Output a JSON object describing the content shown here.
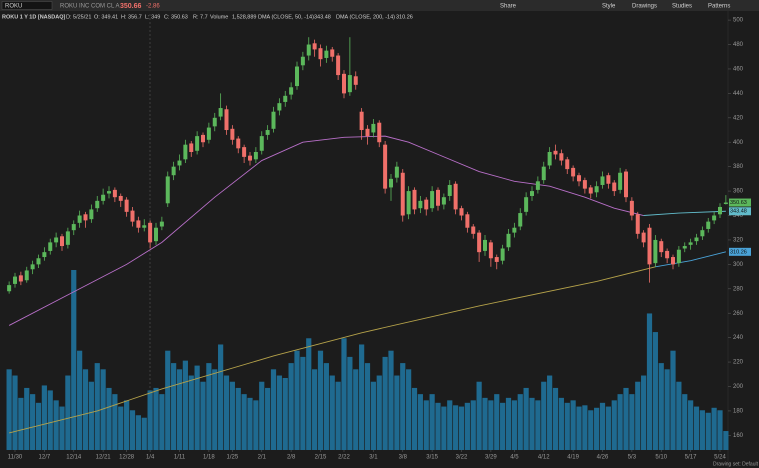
{
  "header": {
    "symbol": "ROKU",
    "company": "ROKU INC COM CL A",
    "last": "350.66",
    "change": "-2.86",
    "buttons": [
      "Share",
      "Style",
      "Drawings",
      "Studies",
      "Patterns"
    ],
    "study_line": [
      "ROKU 1 Y 1D [NASDAQ]",
      "D: 5/25/21",
      "O: 349.41",
      "H: 356.7",
      "L: 349",
      "C: 350.63",
      "R: 7.7",
      "Volume",
      "1,528,889",
      "DMA (CLOSE, 50, -14)",
      "343.48",
      "DMA (CLOSE, 200, -14)",
      "310.26"
    ],
    "footer": "Drawing set: Default"
  },
  "chart_data": {
    "type": "candlestick",
    "up_color": "#5cb85c",
    "down_color": "#f0706a",
    "volume_color": "#1f6a90",
    "xlim": [
      -1,
      124
    ],
    "ylim": [
      148,
      505
    ],
    "yticks": [
      160,
      180,
      200,
      220,
      240,
      260,
      280,
      300,
      320,
      340,
      360,
      380,
      400,
      420,
      440,
      460,
      480,
      500
    ],
    "xticks": [
      {
        "value": 1,
        "label": "11/30"
      },
      {
        "value": 6,
        "label": "12/7"
      },
      {
        "value": 11,
        "label": "12/14"
      },
      {
        "value": 16,
        "label": "12/21"
      },
      {
        "value": 20,
        "label": "12/28"
      },
      {
        "value": 24,
        "label": "1/4"
      },
      {
        "value": 29,
        "label": "1/11"
      },
      {
        "value": 34,
        "label": "1/18"
      },
      {
        "value": 38,
        "label": "1/25"
      },
      {
        "value": 43,
        "label": "2/1"
      },
      {
        "value": 48,
        "label": "2/8"
      },
      {
        "value": 53,
        "label": "2/15"
      },
      {
        "value": 57,
        "label": "2/22"
      },
      {
        "value": 62,
        "label": "3/1"
      },
      {
        "value": 67,
        "label": "3/8"
      },
      {
        "value": 72,
        "label": "3/15"
      },
      {
        "value": 77,
        "label": "3/22"
      },
      {
        "value": 82,
        "label": "3/29"
      },
      {
        "value": 86,
        "label": "4/5"
      },
      {
        "value": 91,
        "label": "4/12"
      },
      {
        "value": 96,
        "label": "4/19"
      },
      {
        "value": 101,
        "label": "4/26"
      },
      {
        "value": 106,
        "label": "5/3"
      },
      {
        "value": 111,
        "label": "5/10"
      },
      {
        "value": 116,
        "label": "5/17"
      },
      {
        "value": 121,
        "label": "5/24"
      }
    ],
    "ohlc": [
      [
        278,
        286,
        276,
        283
      ],
      [
        284,
        293,
        281,
        290
      ],
      [
        291,
        294,
        283,
        286
      ],
      [
        287,
        298,
        285,
        295
      ],
      [
        296,
        303,
        292,
        300
      ],
      [
        300,
        308,
        297,
        305
      ],
      [
        306,
        314,
        303,
        310
      ],
      [
        311,
        321,
        308,
        318
      ],
      [
        318,
        326,
        314,
        322
      ],
      [
        323,
        325,
        311,
        315
      ],
      [
        316,
        330,
        313,
        327
      ],
      [
        328,
        336,
        324,
        333
      ],
      [
        334,
        344,
        330,
        340
      ],
      [
        341,
        343,
        330,
        336
      ],
      [
        337,
        349,
        334,
        345
      ],
      [
        346,
        356,
        343,
        352
      ],
      [
        352,
        362,
        349,
        357
      ],
      [
        358,
        364,
        354,
        360
      ],
      [
        361,
        363,
        351,
        355
      ],
      [
        356,
        358,
        347,
        352
      ],
      [
        353,
        355,
        339,
        343
      ],
      [
        344,
        347,
        331,
        335
      ],
      [
        336,
        339,
        326,
        330
      ],
      [
        330,
        337,
        327,
        332
      ],
      [
        334,
        336,
        313,
        318
      ],
      [
        319,
        334,
        316,
        330
      ],
      [
        331,
        339,
        328,
        335
      ],
      [
        350,
        376,
        347,
        372
      ],
      [
        373,
        384,
        369,
        380
      ],
      [
        381,
        390,
        377,
        385
      ],
      [
        386,
        402,
        383,
        398
      ],
      [
        399,
        401,
        388,
        392
      ],
      [
        393,
        409,
        390,
        405
      ],
      [
        406,
        408,
        396,
        400
      ],
      [
        402,
        416,
        399,
        412
      ],
      [
        413,
        424,
        409,
        420
      ],
      [
        421,
        440,
        418,
        428
      ],
      [
        427,
        430,
        406,
        410
      ],
      [
        411,
        414,
        398,
        402
      ],
      [
        403,
        405,
        391,
        395
      ],
      [
        396,
        398,
        383,
        388
      ],
      [
        389,
        392,
        381,
        385
      ],
      [
        386,
        396,
        383,
        392
      ],
      [
        393,
        409,
        390,
        405
      ],
      [
        406,
        414,
        402,
        410
      ],
      [
        411,
        429,
        408,
        425
      ],
      [
        426,
        436,
        422,
        432
      ],
      [
        433,
        442,
        429,
        438
      ],
      [
        439,
        449,
        435,
        445
      ],
      [
        446,
        466,
        443,
        462
      ],
      [
        463,
        474,
        459,
        470
      ],
      [
        471,
        486,
        467,
        480
      ],
      [
        481,
        484,
        470,
        476
      ],
      [
        477,
        480,
        462,
        468
      ],
      [
        469,
        479,
        465,
        475
      ],
      [
        476,
        478,
        466,
        470
      ],
      [
        471,
        473,
        451,
        455
      ],
      [
        456,
        459,
        436,
        440
      ],
      [
        441,
        486,
        438,
        455
      ],
      [
        454,
        458,
        443,
        447
      ],
      [
        425,
        428,
        402,
        410
      ],
      [
        411,
        414,
        398,
        405
      ],
      [
        408,
        419,
        404,
        415
      ],
      [
        416,
        418,
        396,
        400
      ],
      [
        398,
        401,
        358,
        362
      ],
      [
        363,
        374,
        352,
        370
      ],
      [
        371,
        384,
        367,
        380
      ],
      [
        375,
        378,
        335,
        340
      ],
      [
        341,
        364,
        337,
        360
      ],
      [
        361,
        363,
        341,
        345
      ],
      [
        346,
        356,
        342,
        352
      ],
      [
        353,
        355,
        340,
        345
      ],
      [
        346,
        364,
        343,
        360
      ],
      [
        361,
        363,
        344,
        348
      ],
      [
        349,
        358,
        345,
        355
      ],
      [
        356,
        369,
        352,
        365
      ],
      [
        366,
        368,
        341,
        345
      ],
      [
        346,
        348,
        336,
        340
      ],
      [
        341,
        343,
        326,
        330
      ],
      [
        331,
        333,
        321,
        325
      ],
      [
        326,
        328,
        302,
        310
      ],
      [
        311,
        324,
        307,
        320
      ],
      [
        318,
        320,
        298,
        305
      ],
      [
        306,
        308,
        296,
        302
      ],
      [
        303,
        316,
        300,
        313
      ],
      [
        314,
        329,
        311,
        325
      ],
      [
        326,
        334,
        322,
        330
      ],
      [
        331,
        346,
        328,
        342
      ],
      [
        343,
        359,
        340,
        355
      ],
      [
        356,
        364,
        352,
        360
      ],
      [
        361,
        372,
        358,
        368
      ],
      [
        369,
        384,
        366,
        380
      ],
      [
        381,
        396,
        378,
        392
      ],
      [
        393,
        398,
        386,
        390
      ],
      [
        391,
        394,
        381,
        385
      ],
      [
        386,
        388,
        374,
        378
      ],
      [
        379,
        381,
        368,
        372
      ],
      [
        373,
        375,
        364,
        368
      ],
      [
        369,
        371,
        358,
        362
      ],
      [
        363,
        365,
        354,
        358
      ],
      [
        359,
        368,
        355,
        364
      ],
      [
        365,
        376,
        362,
        372
      ],
      [
        373,
        375,
        362,
        366
      ],
      [
        367,
        369,
        356,
        360
      ],
      [
        361,
        379,
        358,
        375
      ],
      [
        376,
        378,
        351,
        355
      ],
      [
        352,
        355,
        336,
        340
      ],
      [
        341,
        343,
        321,
        325
      ],
      [
        326,
        328,
        314,
        318
      ],
      [
        330,
        333,
        285,
        300
      ],
      [
        301,
        324,
        298,
        320
      ],
      [
        319,
        321,
        306,
        310
      ],
      [
        311,
        313,
        301,
        305
      ],
      [
        306,
        308,
        296,
        300
      ],
      [
        301,
        315,
        298,
        312
      ],
      [
        313,
        318,
        310,
        315
      ],
      [
        316,
        321,
        312,
        318
      ],
      [
        319,
        325,
        316,
        322
      ],
      [
        323,
        331,
        320,
        328
      ],
      [
        329,
        338,
        326,
        335
      ],
      [
        336,
        343,
        333,
        340
      ],
      [
        341,
        350,
        338,
        347
      ],
      [
        349.41,
        356.7,
        349,
        350.63
      ]
    ],
    "volume": [
      6500000,
      6000000,
      4200000,
      5000000,
      4500000,
      3800000,
      5200000,
      4800000,
      4000000,
      3500000,
      6000000,
      14500000,
      8000000,
      6500000,
      5500000,
      7000000,
      6500000,
      5000000,
      4500000,
      3500000,
      4000000,
      3200000,
      2800000,
      2600000,
      4800000,
      5000000,
      4500000,
      8000000,
      7000000,
      6500000,
      7200000,
      6000000,
      6800000,
      5500000,
      7000000,
      6500000,
      8500000,
      6000000,
      5500000,
      5000000,
      4500000,
      4200000,
      4000000,
      5500000,
      5000000,
      6500000,
      6000000,
      5800000,
      7000000,
      8000000,
      7500000,
      9000000,
      6500000,
      8000000,
      7000000,
      6000000,
      5500000,
      9000000,
      7500000,
      6500000,
      8500000,
      7000000,
      5500000,
      6000000,
      7500000,
      8000000,
      6000000,
      7000000,
      6500000,
      5000000,
      4500000,
      4000000,
      4500000,
      3800000,
      3500000,
      4000000,
      3600000,
      3500000,
      3800000,
      4000000,
      5500000,
      4200000,
      4000000,
      4500000,
      3800000,
      4200000,
      4000000,
      4500000,
      5000000,
      4200000,
      4000000,
      5500000,
      6000000,
      5000000,
      4200000,
      3800000,
      4000000,
      3500000,
      3600000,
      3200000,
      3400000,
      3800000,
      3500000,
      4000000,
      4500000,
      5000000,
      4500000,
      5500000,
      6000000,
      11000000,
      9500000,
      7000000,
      6500000,
      8000000,
      5500000,
      4500000,
      4000000,
      3500000,
      3200000,
      3000000,
      3400000,
      3200000,
      1528889
    ],
    "series": [
      {
        "name": "DMA (CLOSE, 50, -14)",
        "color": "#b86fc8",
        "x": [
          0,
          10,
          20,
          26,
          35,
          43,
          50,
          57,
          64,
          68,
          74,
          80,
          86,
          92,
          98,
          103,
          108
        ],
        "values": [
          250,
          275,
          300,
          318,
          355,
          385,
          400,
          404,
          405,
          400,
          388,
          376,
          368,
          364,
          355,
          346,
          340
        ]
      },
      {
        "color": "#62bccb",
        "x": [
          108,
          114,
          122
        ],
        "values": [
          340,
          342,
          343.48
        ]
      },
      {
        "name": "DMA (CLOSE, 200, -14)",
        "color": "#b5a24a",
        "x": [
          0,
          15,
          26,
          45,
          60,
          80,
          100,
          110
        ],
        "values": [
          162,
          180,
          198,
          225,
          244,
          266,
          286,
          298
        ]
      },
      {
        "color": "#4aa3d8",
        "x": [
          110,
          116,
          122
        ],
        "values": [
          298,
          303,
          310.26
        ]
      }
    ]
  }
}
